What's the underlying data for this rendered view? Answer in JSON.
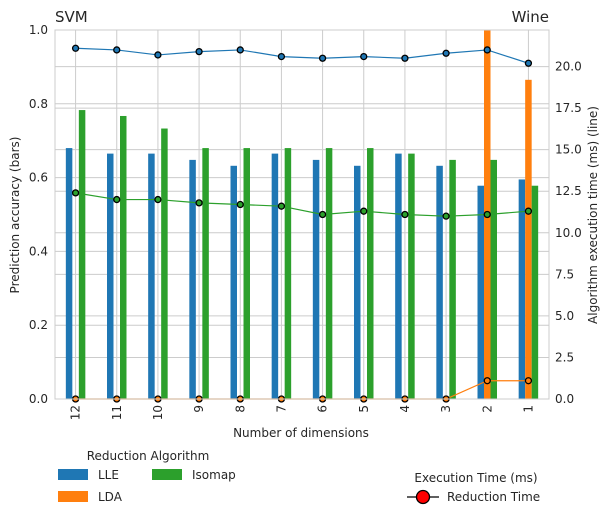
{
  "chart_data": {
    "type": "bar",
    "title_left": "SVM",
    "title_right": "Wine",
    "xlabel": "Number of dimensions",
    "ylabel": "Prediction accuracy (bars)",
    "y2label": "Algorithm execution time (ms) (line)",
    "categories": [
      "12",
      "11",
      "10",
      "9",
      "8",
      "7",
      "6",
      "5",
      "4",
      "3",
      "2",
      "1"
    ],
    "ylim": [
      0,
      1.0
    ],
    "yticks": [
      "0.0",
      "0.2",
      "0.4",
      "0.6",
      "0.8",
      "1.0"
    ],
    "y2lim": [
      0,
      22.2
    ],
    "y2ticks": [
      "0.0",
      "2.5",
      "5.0",
      "7.5",
      "10.0",
      "12.5",
      "15.0",
      "17.5",
      "20.0"
    ],
    "grid": true,
    "series": [
      {
        "name": "LLE",
        "color": "#1f77b4",
        "values": [
          0.68,
          0.665,
          0.665,
          0.648,
          0.632,
          0.665,
          0.648,
          0.632,
          0.665,
          0.632,
          0.578,
          0.595
        ]
      },
      {
        "name": "LDA",
        "color": "#ff7f0e",
        "values": [
          0,
          0,
          0,
          0,
          0,
          0,
          0,
          0,
          0,
          0,
          1.0,
          0.865
        ]
      },
      {
        "name": "Isomap",
        "color": "#2ca02c",
        "values": [
          0.783,
          0.767,
          0.733,
          0.68,
          0.68,
          0.68,
          0.68,
          0.68,
          0.665,
          0.648,
          0.648,
          0.578
        ]
      }
    ],
    "lines": [
      {
        "series": "LLE",
        "color": "#1f77b4",
        "values": [
          21.1,
          21.0,
          20.7,
          20.9,
          21.0,
          20.6,
          20.5,
          20.6,
          20.5,
          20.8,
          21.0,
          20.2
        ]
      },
      {
        "series": "LDA",
        "color": "#ff7f0e",
        "values": [
          0,
          0,
          0,
          0,
          0,
          0,
          0,
          0,
          0,
          0,
          1.1,
          1.1
        ]
      },
      {
        "series": "Isomap",
        "color": "#2ca02c",
        "values": [
          12.4,
          12.0,
          12.0,
          11.8,
          11.7,
          11.6,
          11.1,
          11.3,
          11.1,
          11.0,
          11.1,
          11.3
        ]
      }
    ],
    "legend_algorithms": {
      "title": "Reduction Algorithm",
      "position": "bottom-left",
      "items": [
        "LLE",
        "LDA",
        "Isomap"
      ]
    },
    "legend_time": {
      "title": "Execution Time (ms)",
      "position": "bottom-right",
      "item": "Reduction Time",
      "marker_color": "#ff0000"
    }
  }
}
